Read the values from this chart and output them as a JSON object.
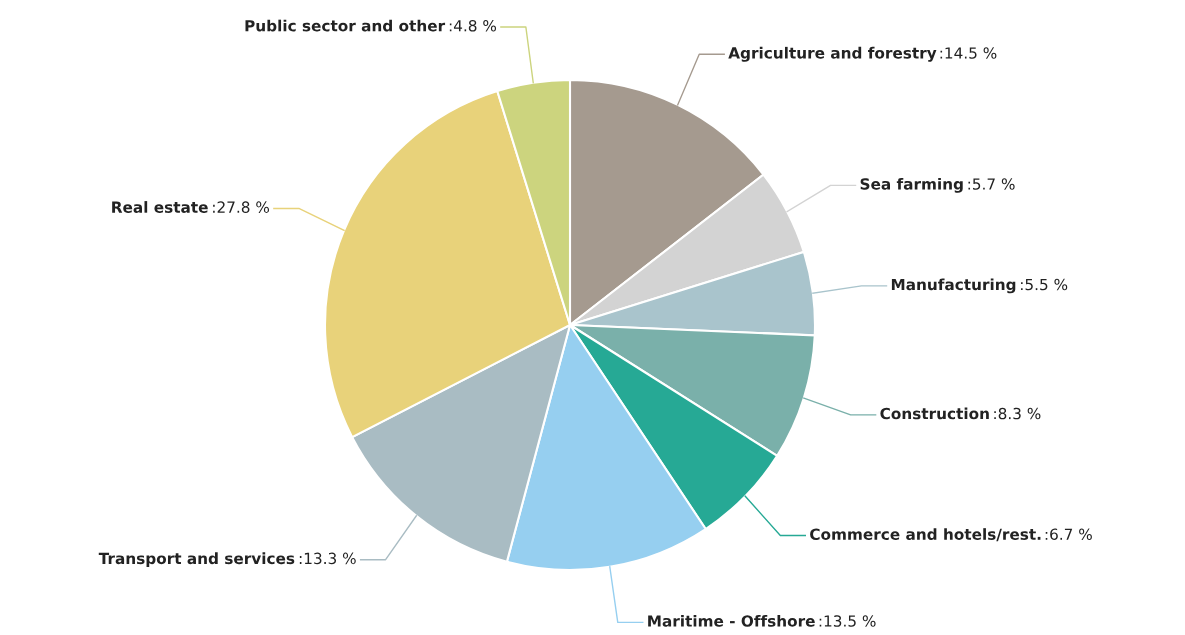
{
  "chart_data": {
    "type": "pie",
    "categories": [
      "Agriculture and forestry",
      "Sea farming",
      "Manufacturing",
      "Construction",
      "Commerce and hotels/rest.",
      "Maritime - Offshore",
      "Transport and services",
      "Real estate",
      "Public sector and other"
    ],
    "values": [
      14.5,
      5.7,
      5.5,
      8.3,
      6.7,
      13.5,
      13.3,
      27.8,
      4.8
    ],
    "colors": [
      "#a59a8f",
      "#d3d3d3",
      "#a9c4cc",
      "#7ab0aa",
      "#26a995",
      "#96cff0",
      "#a9bcc3",
      "#e8d27a",
      "#ccd47e"
    ],
    "value_labels": [
      ":14.5 %",
      ":5.7 %",
      ":5.5 %",
      ":8.3 %",
      ":6.7 %",
      ":13.5 %",
      ":13.3 %",
      ":27.8 %",
      ":4.8 %"
    ]
  }
}
